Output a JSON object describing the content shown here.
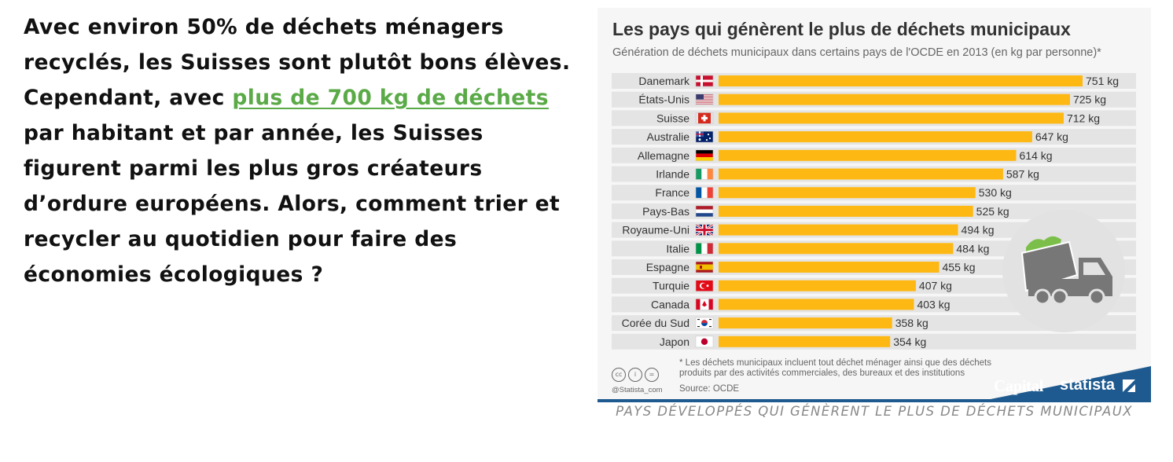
{
  "article": {
    "text_before": "Avec environ 50% de déchets ménagers recyclés, les Suisses sont plutôt bons élèves. Cependant, avec ",
    "link_text": "plus de 700 kg de déchets",
    "text_after": " par habitant et par année, les Suisses figurent parmi les plus gros créateurs d’ordure européens. Alors, comment trier et recycler au quotidien pour faire des économies écologiques ?"
  },
  "chart_data": {
    "type": "bar",
    "orientation": "horizontal",
    "title": "Les pays qui génèrent le plus de déchets municipaux",
    "subtitle": "Génération de déchets municipaux dans certains pays de l'OCDE en 2013 (en kg par personne)*",
    "categories": [
      "Danemark",
      "États-Unis",
      "Suisse",
      "Australie",
      "Allemagne",
      "Irlande",
      "France",
      "Pays-Bas",
      "Royaume-Uni",
      "Italie",
      "Espagne",
      "Turquie",
      "Canada",
      "Corée du Sud",
      "Japon"
    ],
    "values": [
      751,
      725,
      712,
      647,
      614,
      587,
      530,
      525,
      494,
      484,
      455,
      407,
      403,
      358,
      354
    ],
    "value_labels": [
      "751 kg",
      "725 kg",
      "712 kg",
      "647 kg",
      "614 kg",
      "587 kg",
      "530 kg",
      "525 kg",
      "494 kg",
      "484 kg",
      "455 kg",
      "407 kg",
      "403 kg",
      "358 kg",
      "354 kg"
    ],
    "unit": "kg",
    "xlim": [
      0,
      751
    ],
    "grid": false,
    "flags": [
      "flag-denmark-icon",
      "flag-usa-icon",
      "flag-switzerland-icon",
      "flag-australia-icon",
      "flag-germany-icon",
      "flag-ireland-icon",
      "flag-france-icon",
      "flag-netherlands-icon",
      "flag-uk-icon",
      "flag-italy-icon",
      "flag-spain-icon",
      "flag-turkey-icon",
      "flag-canada-icon",
      "flag-south-korea-icon",
      "flag-japan-icon"
    ],
    "bar_color": "#fdb813",
    "row_band_color": "#e4e4e4",
    "label_color": "#333333"
  },
  "footer": {
    "note": "* Les déchets municipaux incluent tout déchet ménager ainsi que des déchets produits par des activités commerciales, des bureaux et des institutions",
    "source": "Source: OCDE",
    "handle": "@Statista_com",
    "cc_icons": [
      "cc",
      "i",
      "="
    ],
    "brand_capital": "Capital",
    "brand_statista": "statista",
    "brand_color": "#1e5a8f"
  },
  "illustration": "garbage-truck-icon",
  "caption": "PAYS DÉVELOPPÉS QUI GÉNÈRENT LE PLUS DE DÉCHETS MUNICIPAUX"
}
